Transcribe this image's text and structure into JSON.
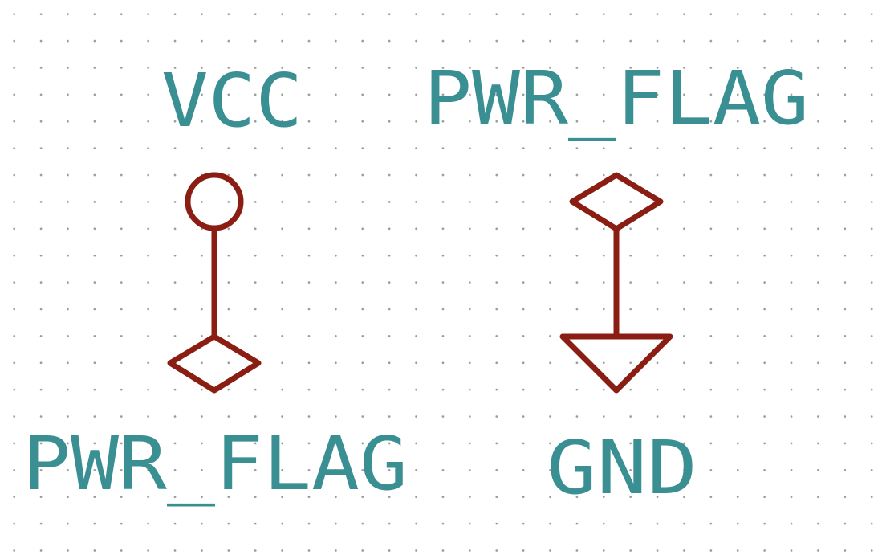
{
  "colors": {
    "background": "#ffffff",
    "grid_dot": "#9a9a9a",
    "symbol_stroke": "#8b1e12",
    "label_text": "#3a8f93"
  },
  "symbols": [
    {
      "name": "vcc",
      "label": "VCC",
      "icon": "vcc-circle-symbol"
    },
    {
      "name": "pwr-flag-top",
      "label": "PWR_FLAG",
      "icon": "pwr-flag-diamond-symbol"
    },
    {
      "name": "pwr-flag-bottom",
      "label": "PWR_FLAG",
      "icon": "pwr-flag-diamond-symbol"
    },
    {
      "name": "gnd",
      "label": "GND",
      "icon": "gnd-triangle-symbol"
    }
  ]
}
